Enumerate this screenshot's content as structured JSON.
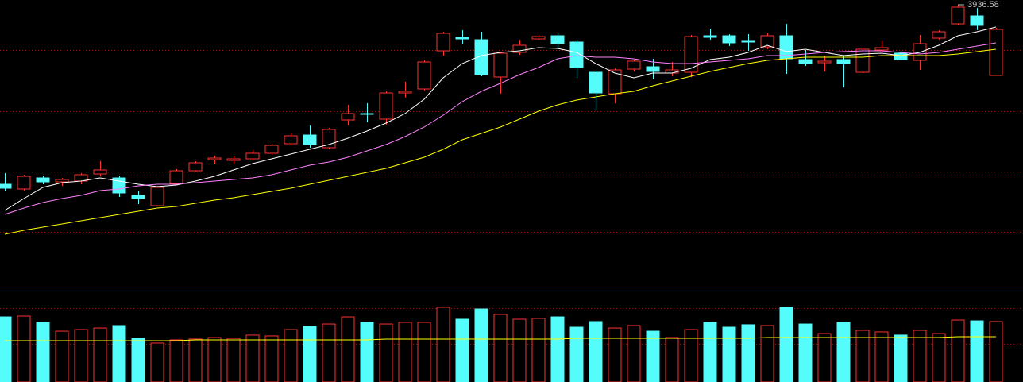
{
  "chart_data": {
    "type": "candlestick",
    "open": [
      3642.8,
      3635.0,
      3653.2,
      3646.7,
      3648.0,
      3659.7,
      3653.2,
      3624.6,
      3607.7,
      3644.1,
      3664.9,
      3683.1,
      3681.8,
      3684.4,
      3693.5,
      3709.1,
      3723.4,
      3702.6,
      3748.1,
      3758.5,
      3749.4,
      3792.3,
      3798.8,
      3861.2,
      3883.3,
      3879.4,
      3818.3,
      3858.6,
      3880.7,
      3885.9,
      3875.5,
      3826.1,
      3791.0,
      3831.3,
      3835.2,
      3824.8,
      3826.1,
      3885.9,
      3885.9,
      3878.1,
      3867.7,
      3885.9,
      3846.9,
      3841.7,
      3846.9,
      3826.1,
      3862.5,
      3857.3,
      3845.6,
      3882.0,
      3905.4,
      3918.4,
      3820.9
    ],
    "high": [
      3661.0,
      3658.4,
      3655.8,
      3653.2,
      3661.0,
      3680.5,
      3655.8,
      3632.4,
      3640.2,
      3667.5,
      3680.5,
      3689.6,
      3689.6,
      3698.7,
      3709.1,
      3726.0,
      3739.0,
      3735.1,
      3772.8,
      3775.4,
      3794.9,
      3810.5,
      3845.6,
      3892.4,
      3895.0,
      3892.4,
      3859.9,
      3879.4,
      3887.2,
      3891.1,
      3879.4,
      3828.7,
      3832.6,
      3846.9,
      3848.2,
      3843.0,
      3887.2,
      3897.6,
      3888.5,
      3888.5,
      3889.8,
      3905.4,
      3862.5,
      3853.4,
      3853.4,
      3866.4,
      3878.1,
      3861.2,
      3887.2,
      3895.0,
      3936.58,
      3931.4,
      3898.9
    ],
    "low": [
      3632.4,
      3632.4,
      3642.8,
      3640.2,
      3642.8,
      3655.8,
      3622.0,
      3610.3,
      3606.4,
      3642.8,
      3663.6,
      3675.3,
      3675.3,
      3681.8,
      3690.9,
      3706.5,
      3702.6,
      3700.0,
      3739.0,
      3744.2,
      3740.3,
      3784.5,
      3796.2,
      3853.4,
      3871.6,
      3819.6,
      3791.0,
      3854.7,
      3879.4,
      3866.4,
      3817.0,
      3765.0,
      3775.4,
      3827.4,
      3814.4,
      3819.6,
      3818.3,
      3879.4,
      3869.0,
      3861.2,
      3863.8,
      3823.5,
      3836.5,
      3827.4,
      3801.4,
      3824.8,
      3858.6,
      3845.6,
      3830.0,
      3879.4,
      3902.8,
      3895.0,
      3820.9
    ],
    "close": [
      3636.3,
      3655.8,
      3646.7,
      3650.6,
      3658.4,
      3666.2,
      3628.5,
      3619.4,
      3637.6,
      3664.9,
      3677.9,
      3685.7,
      3684.4,
      3693.5,
      3706.5,
      3722.1,
      3707.8,
      3732.5,
      3758.5,
      3757.2,
      3792.3,
      3794.9,
      3843.0,
      3889.8,
      3880.7,
      3822.2,
      3857.3,
      3870.3,
      3884.6,
      3872.9,
      3833.9,
      3792.3,
      3830.0,
      3844.3,
      3827.4,
      3830.0,
      3884.6,
      3883.3,
      3874.2,
      3875.5,
      3885.9,
      3848.2,
      3840.4,
      3844.3,
      3840.4,
      3863.8,
      3866.4,
      3846.9,
      3872.9,
      3892.4,
      3932.7,
      3902.8,
      3896.3
    ],
    "up_color": "#ff3232",
    "down_color": "#54fcfc",
    "ylim": [
      3469.9,
      3944.4
    ],
    "grid_lines": [
      3564.8,
      3663.6,
      3762.4,
      3862.5
    ],
    "grid": true,
    "ma": [
      {
        "color": "#ffffff",
        "values": [
          3599.9,
          3619.4,
          3637.6,
          3645.4,
          3648.0,
          3653.2,
          3648.0,
          3642.8,
          3638.9,
          3641.5,
          3648.0,
          3655.8,
          3666.2,
          3676.6,
          3684.4,
          3692.2,
          3700.0,
          3707.8,
          3718.2,
          3729.9,
          3742.9,
          3758.5,
          3781.9,
          3817.0,
          3840.4,
          3853.4,
          3858.6,
          3861.2,
          3866.4,
          3865.1,
          3858.6,
          3840.4,
          3824.8,
          3817.0,
          3824.8,
          3824.8,
          3832.6,
          3846.9,
          3850.8,
          3858.6,
          3870.3,
          3859.9,
          3863.8,
          3858.6,
          3853.4,
          3856.0,
          3857.3,
          3853.4,
          3858.6,
          3870.3,
          3885.9,
          3892.4,
          3900.2
        ]
      },
      {
        "color": "#ff80ff",
        "values": [
          3593.4,
          3603.8,
          3612.9,
          3619.4,
          3624.6,
          3632.4,
          3635.0,
          3640.2,
          3642.8,
          3642.8,
          3645.4,
          3648.0,
          3650.6,
          3653.2,
          3658.4,
          3666.2,
          3674.0,
          3679.2,
          3687.0,
          3697.4,
          3707.8,
          3720.8,
          3736.4,
          3755.9,
          3778.0,
          3794.9,
          3807.9,
          3822.2,
          3833.9,
          3848.2,
          3853.4,
          3850.8,
          3850.8,
          3848.2,
          3843.0,
          3840.4,
          3840.4,
          3843.0,
          3845.6,
          3848.2,
          3853.4,
          3853.4,
          3856.0,
          3858.6,
          3859.9,
          3861.2,
          3861.2,
          3858.6,
          3856.0,
          3858.6,
          3863.8,
          3869.0,
          3874.2
        ]
      },
      {
        "color": "#ffff00",
        "values": [
          3560.9,
          3567.4,
          3572.6,
          3577.8,
          3583.0,
          3588.2,
          3593.4,
          3598.6,
          3603.8,
          3606.4,
          3611.6,
          3616.8,
          3620.7,
          3625.9,
          3631.1,
          3636.3,
          3642.8,
          3649.3,
          3655.8,
          3662.3,
          3668.8,
          3677.9,
          3687.0,
          3700.0,
          3715.6,
          3726.0,
          3736.4,
          3749.4,
          3762.4,
          3772.8,
          3780.6,
          3785.8,
          3791.0,
          3794.9,
          3804.0,
          3811.8,
          3819.6,
          3827.4,
          3833.9,
          3840.4,
          3845.6,
          3848.2,
          3850.8,
          3850.8,
          3850.8,
          3850.8,
          3853.4,
          3853.4,
          3853.4,
          3853.4,
          3856.0,
          3859.9,
          3863.8
        ]
      }
    ],
    "volume": [
      71.9,
      72.8,
      65.8,
      56.1,
      57.9,
      59.6,
      62.3,
      48.2,
      43.0,
      46.5,
      47.4,
      49.1,
      48.2,
      51.8,
      50.9,
      57.9,
      61.4,
      64.0,
      71.9,
      65.8,
      64.0,
      65.8,
      65.8,
      82.5,
      69.3,
      80.7,
      74.6,
      69.3,
      70.2,
      71.9,
      60.5,
      66.7,
      59.6,
      62.3,
      56.1,
      49.1,
      57.9,
      65.8,
      60.5,
      63.2,
      62.3,
      82.5,
      64.0,
      53.5,
      65.8,
      57.0,
      55.3,
      51.8,
      57.0,
      53.5,
      68.4,
      67.5,
      66.7
    ],
    "volume_lim": [
      0,
      100
    ],
    "volume_ma": {
      "color": "#ffff00",
      "values": [
        45.6,
        45.6,
        45.6,
        45.6,
        45.6,
        45.6,
        45.6,
        45.6,
        45.6,
        45.6,
        46.5,
        46.5,
        46.5,
        46.5,
        46.5,
        46.5,
        46.5,
        46.5,
        46.5,
        46.5,
        47.4,
        47.4,
        47.4,
        47.4,
        47.4,
        47.4,
        47.4,
        47.4,
        47.4,
        47.4,
        48.2,
        48.2,
        48.2,
        48.2,
        48.2,
        48.2,
        48.2,
        48.2,
        48.2,
        48.2,
        49.1,
        49.1,
        49.1,
        49.1,
        49.1,
        49.1,
        49.1,
        49.1,
        49.1,
        49.1,
        50.0,
        50.0,
        50.0
      ]
    }
  }
}
